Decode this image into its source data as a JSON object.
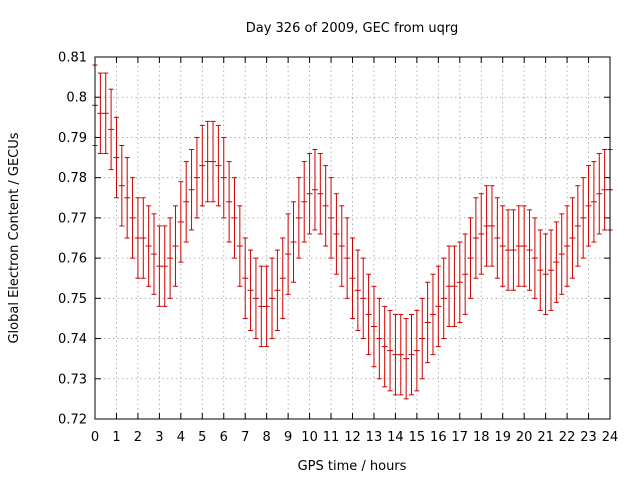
{
  "chart_data": {
    "type": "scatter",
    "title": "Day 326 of 2009, GEC from uqrg",
    "xlabel": "GPS time / hours",
    "ylabel": "Global Electron Content / GECUs",
    "xlim": [
      0,
      24
    ],
    "ylim": [
      0.72,
      0.81
    ],
    "x_ticks": [
      0,
      1,
      2,
      3,
      4,
      5,
      6,
      7,
      8,
      9,
      10,
      11,
      12,
      13,
      14,
      15,
      16,
      17,
      18,
      19,
      20,
      21,
      22,
      23,
      24
    ],
    "y_ticks": [
      0.72,
      0.73,
      0.74,
      0.75,
      0.76,
      0.77,
      0.78,
      0.79,
      0.8,
      0.81
    ],
    "x_tick_labels": [
      "0",
      "1",
      "2",
      "3",
      "4",
      "5",
      "6",
      "7",
      "8",
      "9",
      "10",
      "11",
      "12",
      "13",
      "14",
      "15",
      "16",
      "17",
      "18",
      "19",
      "20",
      "21",
      "22",
      "23",
      "24"
    ],
    "y_tick_labels": [
      "0.72",
      "0.73",
      "0.74",
      "0.75",
      "0.76",
      "0.77",
      "0.78",
      "0.79",
      "0.8",
      "0.81"
    ],
    "grid": true,
    "series_color": "#cc0000",
    "error_half_width": 0.01,
    "series": [
      {
        "name": "GEC",
        "points": [
          {
            "x": 0.0,
            "y": 0.798
          },
          {
            "x": 0.25,
            "y": 0.796
          },
          {
            "x": 0.5,
            "y": 0.796
          },
          {
            "x": 0.75,
            "y": 0.792
          },
          {
            "x": 1.0,
            "y": 0.785
          },
          {
            "x": 1.25,
            "y": 0.778
          },
          {
            "x": 1.5,
            "y": 0.775
          },
          {
            "x": 1.75,
            "y": 0.77
          },
          {
            "x": 2.0,
            "y": 0.765
          },
          {
            "x": 2.25,
            "y": 0.765
          },
          {
            "x": 2.5,
            "y": 0.763
          },
          {
            "x": 2.75,
            "y": 0.761
          },
          {
            "x": 3.0,
            "y": 0.758
          },
          {
            "x": 3.25,
            "y": 0.758
          },
          {
            "x": 3.5,
            "y": 0.76
          },
          {
            "x": 3.75,
            "y": 0.763
          },
          {
            "x": 4.0,
            "y": 0.769
          },
          {
            "x": 4.25,
            "y": 0.774
          },
          {
            "x": 4.5,
            "y": 0.777
          },
          {
            "x": 4.75,
            "y": 0.78
          },
          {
            "x": 5.0,
            "y": 0.783
          },
          {
            "x": 5.25,
            "y": 0.784
          },
          {
            "x": 5.5,
            "y": 0.784
          },
          {
            "x": 5.75,
            "y": 0.783
          },
          {
            "x": 6.0,
            "y": 0.78
          },
          {
            "x": 6.25,
            "y": 0.774
          },
          {
            "x": 6.5,
            "y": 0.77
          },
          {
            "x": 6.75,
            "y": 0.763
          },
          {
            "x": 7.0,
            "y": 0.755
          },
          {
            "x": 7.25,
            "y": 0.752
          },
          {
            "x": 7.5,
            "y": 0.75
          },
          {
            "x": 7.75,
            "y": 0.748
          },
          {
            "x": 8.0,
            "y": 0.748
          },
          {
            "x": 8.25,
            "y": 0.75
          },
          {
            "x": 8.5,
            "y": 0.752
          },
          {
            "x": 8.75,
            "y": 0.755
          },
          {
            "x": 9.0,
            "y": 0.761
          },
          {
            "x": 9.25,
            "y": 0.764
          },
          {
            "x": 9.5,
            "y": 0.77
          },
          {
            "x": 9.75,
            "y": 0.774
          },
          {
            "x": 10.0,
            "y": 0.776
          },
          {
            "x": 10.25,
            "y": 0.777
          },
          {
            "x": 10.5,
            "y": 0.776
          },
          {
            "x": 10.75,
            "y": 0.773
          },
          {
            "x": 11.0,
            "y": 0.77
          },
          {
            "x": 11.25,
            "y": 0.766
          },
          {
            "x": 11.5,
            "y": 0.763
          },
          {
            "x": 11.75,
            "y": 0.76
          },
          {
            "x": 12.0,
            "y": 0.755
          },
          {
            "x": 12.25,
            "y": 0.752
          },
          {
            "x": 12.5,
            "y": 0.75
          },
          {
            "x": 12.75,
            "y": 0.746
          },
          {
            "x": 13.0,
            "y": 0.743
          },
          {
            "x": 13.25,
            "y": 0.74
          },
          {
            "x": 13.5,
            "y": 0.738
          },
          {
            "x": 13.75,
            "y": 0.737
          },
          {
            "x": 14.0,
            "y": 0.736
          },
          {
            "x": 14.25,
            "y": 0.736
          },
          {
            "x": 14.5,
            "y": 0.735
          },
          {
            "x": 14.75,
            "y": 0.736
          },
          {
            "x": 15.0,
            "y": 0.737
          },
          {
            "x": 15.25,
            "y": 0.74
          },
          {
            "x": 15.5,
            "y": 0.744
          },
          {
            "x": 15.75,
            "y": 0.746
          },
          {
            "x": 16.0,
            "y": 0.748
          },
          {
            "x": 16.25,
            "y": 0.75
          },
          {
            "x": 16.5,
            "y": 0.753
          },
          {
            "x": 16.75,
            "y": 0.753
          },
          {
            "x": 17.0,
            "y": 0.754
          },
          {
            "x": 17.25,
            "y": 0.756
          },
          {
            "x": 17.5,
            "y": 0.76
          },
          {
            "x": 17.75,
            "y": 0.765
          },
          {
            "x": 18.0,
            "y": 0.766
          },
          {
            "x": 18.25,
            "y": 0.768
          },
          {
            "x": 18.5,
            "y": 0.768
          },
          {
            "x": 18.75,
            "y": 0.765
          },
          {
            "x": 19.0,
            "y": 0.763
          },
          {
            "x": 19.25,
            "y": 0.762
          },
          {
            "x": 19.5,
            "y": 0.762
          },
          {
            "x": 19.75,
            "y": 0.763
          },
          {
            "x": 20.0,
            "y": 0.763
          },
          {
            "x": 20.25,
            "y": 0.762
          },
          {
            "x": 20.5,
            "y": 0.76
          },
          {
            "x": 20.75,
            "y": 0.757
          },
          {
            "x": 21.0,
            "y": 0.756
          },
          {
            "x": 21.25,
            "y": 0.757
          },
          {
            "x": 21.5,
            "y": 0.759
          },
          {
            "x": 21.75,
            "y": 0.761
          },
          {
            "x": 22.0,
            "y": 0.763
          },
          {
            "x": 22.25,
            "y": 0.765
          },
          {
            "x": 22.5,
            "y": 0.768
          },
          {
            "x": 22.75,
            "y": 0.77
          },
          {
            "x": 23.0,
            "y": 0.773
          },
          {
            "x": 23.25,
            "y": 0.774
          },
          {
            "x": 23.5,
            "y": 0.776
          },
          {
            "x": 23.75,
            "y": 0.777
          },
          {
            "x": 24.0,
            "y": 0.777
          }
        ]
      }
    ]
  }
}
